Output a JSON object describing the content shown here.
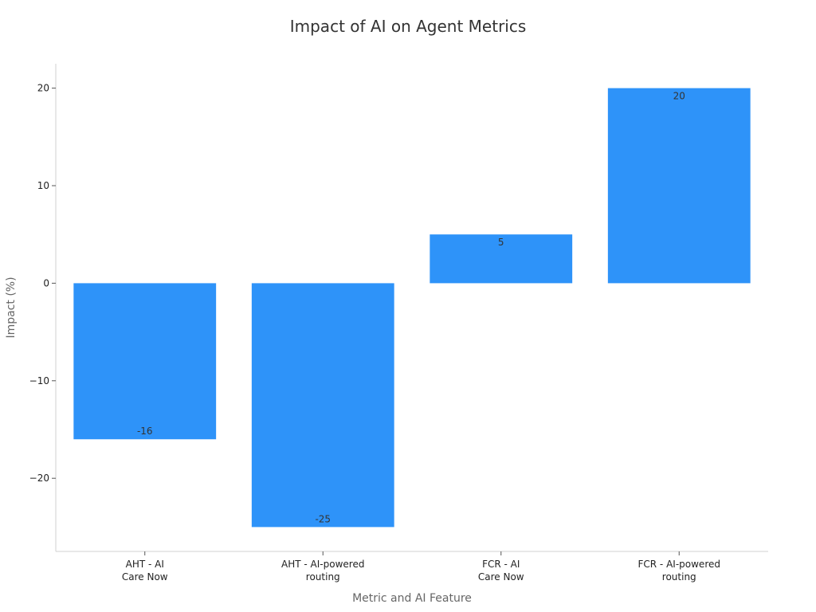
{
  "chart_data": {
    "type": "bar",
    "title": "Impact of AI on Agent Metrics",
    "xlabel": "Metric and AI Feature",
    "ylabel": "Impact (%)",
    "categories": [
      [
        "AHT - AI",
        "Care Now"
      ],
      [
        "AHT - AI-powered",
        "routing"
      ],
      [
        "FCR - AI",
        "Care Now"
      ],
      [
        "FCR - AI-powered",
        "routing"
      ]
    ],
    "values": [
      -16,
      -25,
      5,
      20
    ],
    "ylim": [
      -27.5,
      22.5
    ],
    "yticks": [
      -20,
      -10,
      0,
      10,
      20
    ],
    "bar_color": "#2e93f9",
    "grid": false,
    "legend": false
  }
}
